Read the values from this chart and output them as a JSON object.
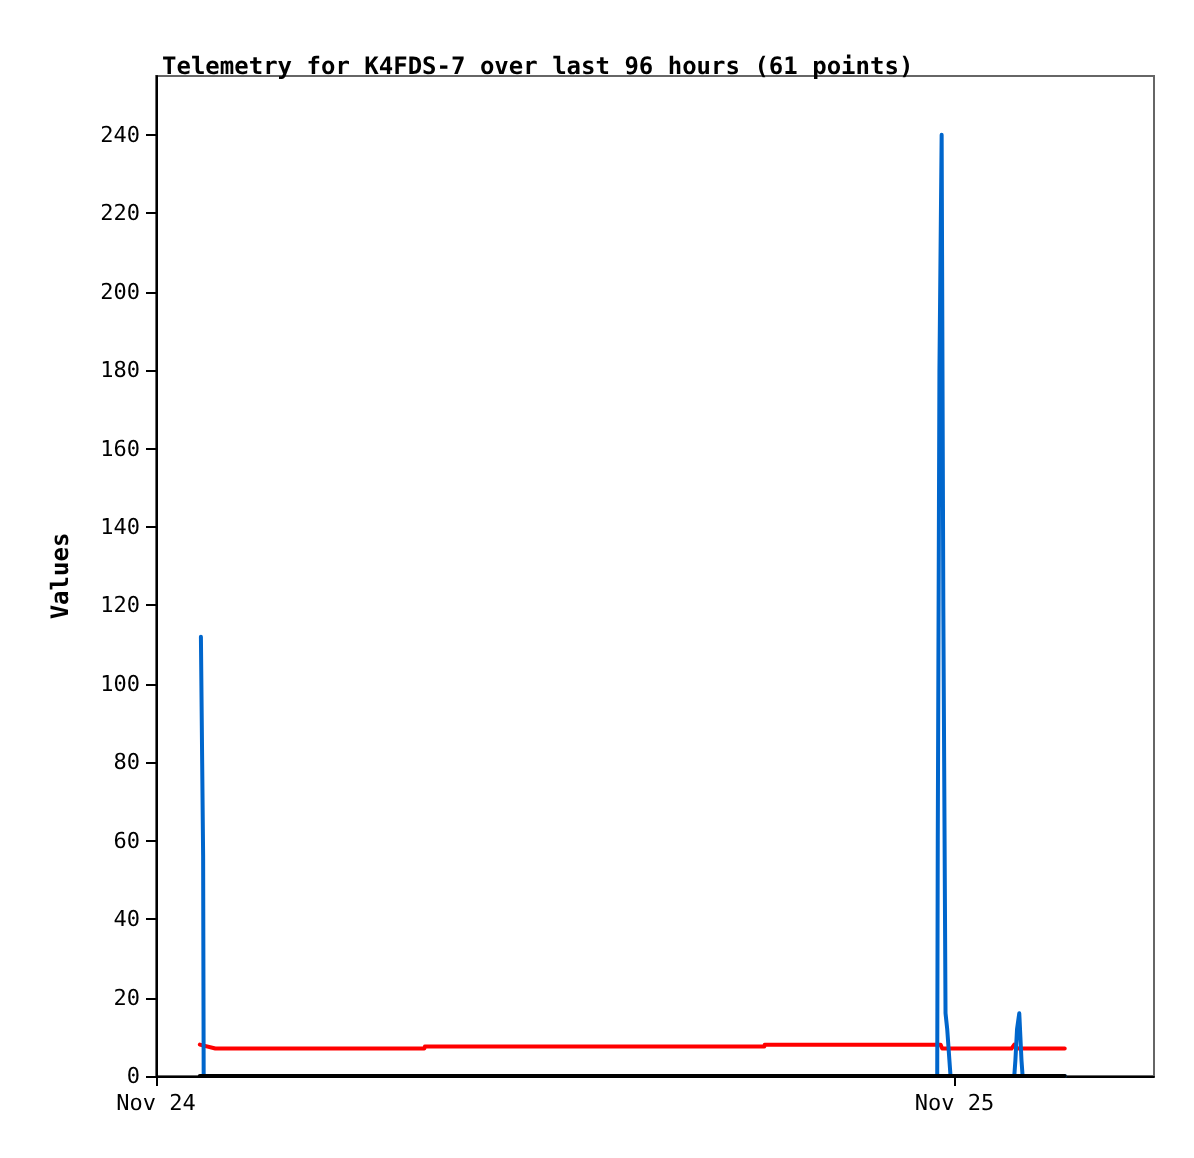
{
  "chart_data": {
    "type": "line",
    "title": "Telemetry for K4FDS-7 over last 96 hours (61 points)",
    "ylabel": "Values",
    "xlim": [
      "--11-24",
      "--11-25T06:00"
    ],
    "xticks": [
      {
        "value": "--11-24",
        "label": "Nov 24"
      },
      {
        "value": "--11-25",
        "label": "Nov 25"
      }
    ],
    "ylim": [
      0,
      255
    ],
    "yticks": [
      0,
      20,
      40,
      60,
      80,
      100,
      120,
      140,
      160,
      180,
      200,
      220,
      240
    ],
    "grid": false,
    "marker": "none",
    "line_style": "solid",
    "series": [
      {
        "color": "#ff0000",
        "x": [
          "--11-24T01:19",
          "--11-24T01:47",
          "--11-24T08:04",
          "--11-24T08:05",
          "--11-24T18:17",
          "--11-24T18:18",
          "--11-24T23:35",
          "--11-24T23:38",
          "--11-25T01:43",
          "--11-25T01:48",
          "--11-25T01:54",
          "--11-25T03:19"
        ],
        "values": [
          8,
          7,
          7,
          7.5,
          7.5,
          8,
          8,
          7,
          7,
          8,
          7,
          7
        ]
      },
      {
        "color": "#0066cc",
        "x": [
          "--11-24T01:21",
          "--11-24T01:25",
          "--11-24T01:26",
          "--11-24T23:29",
          "--11-24T23:30",
          "--11-24T23:33",
          "--11-24T23:37",
          "--11-24T23:40",
          "--11-24T23:44",
          "--11-24T23:47",
          "--11-24T23:51",
          "--11-24T23:53",
          "--11-25T01:48",
          "--11-25T01:50",
          "--11-25T01:53",
          "--11-25T01:57",
          "--11-25T02:01",
          "--11-25T02:03",
          "--11-25T03:19"
        ],
        "values": [
          112,
          56,
          0,
          0,
          60,
          180,
          240,
          120,
          16,
          12,
          4,
          0,
          0,
          4,
          12,
          16,
          4,
          0,
          0
        ]
      },
      {
        "color": "#000000",
        "x": [
          "--11-24T01:19",
          "--11-25T03:19"
        ],
        "values": [
          0,
          0
        ]
      }
    ]
  }
}
